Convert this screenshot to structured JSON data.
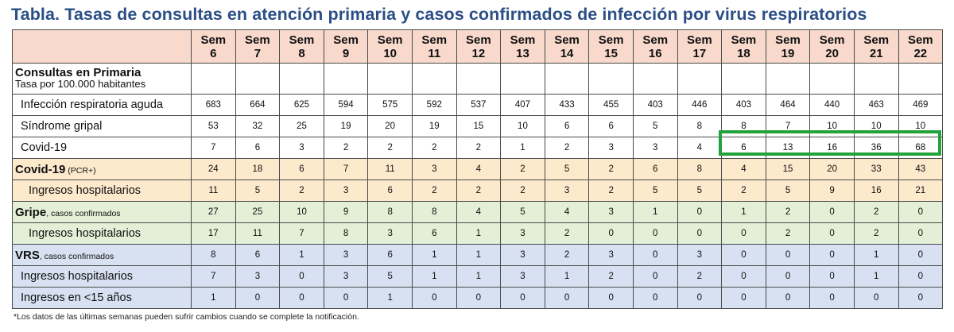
{
  "title": "Tabla. Tasas de consultas en atención primaria y casos confirmados de infección por virus respiratorios",
  "header": {
    "weeks_line1": [
      "Sem",
      "Sem",
      "Sem",
      "Sem",
      "Sem",
      "Sem",
      "Sem",
      "Sem",
      "Sem",
      "Sem",
      "Sem",
      "Sem",
      "Sem",
      "Sem",
      "Sem",
      "Sem",
      "Sem"
    ],
    "weeks_line2": [
      "6",
      "7",
      "8",
      "9",
      "10",
      "11",
      "12",
      "13",
      "14",
      "15",
      "16",
      "17",
      "18",
      "19",
      "20",
      "21",
      "22"
    ]
  },
  "sections": {
    "consultas": {
      "title": "Consultas en Primaria",
      "subtitle": "Tasa por 100.000 habitantes"
    }
  },
  "rows": [
    {
      "label": "Infección respiratoria aguda",
      "values": [
        "683",
        "664",
        "625",
        "594",
        "575",
        "592",
        "537",
        "407",
        "433",
        "455",
        "403",
        "446",
        "403",
        "464",
        "440",
        "463",
        "469"
      ]
    },
    {
      "label": "Síndrome gripal",
      "values": [
        "53",
        "32",
        "25",
        "19",
        "20",
        "19",
        "15",
        "10",
        "6",
        "6",
        "5",
        "8",
        "8",
        "7",
        "10",
        "10",
        "10"
      ]
    },
    {
      "label": "Covid-19",
      "values": [
        "7",
        "6",
        "3",
        "2",
        "2",
        "2",
        "2",
        "1",
        "2",
        "3",
        "3",
        "4",
        "6",
        "13",
        "16",
        "36",
        "68"
      ]
    },
    {
      "label_bold": "Covid-19",
      "label_small": " (PCR+)",
      "values": [
        "24",
        "18",
        "6",
        "7",
        "11",
        "3",
        "4",
        "2",
        "5",
        "2",
        "6",
        "8",
        "4",
        "15",
        "20",
        "33",
        "43"
      ]
    },
    {
      "label": "Ingresos hospitalarios",
      "values": [
        "11",
        "5",
        "2",
        "3",
        "6",
        "2",
        "2",
        "2",
        "3",
        "2",
        "5",
        "5",
        "2",
        "5",
        "9",
        "16",
        "21"
      ]
    },
    {
      "label_bold": "Gripe",
      "label_small": ", casos confirmados",
      "values": [
        "27",
        "25",
        "10",
        "9",
        "8",
        "8",
        "4",
        "5",
        "4",
        "3",
        "1",
        "0",
        "1",
        "2",
        "0",
        "2",
        "0"
      ]
    },
    {
      "label": "Ingresos hospitalarios",
      "values": [
        "17",
        "11",
        "7",
        "8",
        "3",
        "6",
        "1",
        "3",
        "2",
        "0",
        "0",
        "0",
        "0",
        "2",
        "0",
        "2",
        "0"
      ]
    },
    {
      "label_bold": "VRS",
      "label_small": ", casos confirmados",
      "values": [
        "8",
        "6",
        "1",
        "3",
        "6",
        "1",
        "1",
        "3",
        "2",
        "3",
        "0",
        "3",
        "0",
        "0",
        "0",
        "1",
        "0"
      ]
    },
    {
      "label": "Ingresos hospitalarios",
      "values": [
        "7",
        "3",
        "0",
        "3",
        "5",
        "1",
        "1",
        "3",
        "1",
        "2",
        "0",
        "2",
        "0",
        "0",
        "0",
        "1",
        "0"
      ]
    },
    {
      "label": "Ingresos en <15 años",
      "values": [
        "1",
        "0",
        "0",
        "0",
        "1",
        "0",
        "0",
        "0",
        "0",
        "0",
        "0",
        "0",
        "0",
        "0",
        "0",
        "0",
        "0"
      ]
    }
  ],
  "footnote": "*Los datos de las últimas semanas pueden sufrir cambios cuando se complete la notificación.",
  "colors": {
    "title": "#2b4f86",
    "header_bg": "#f8d9cc",
    "covid_bg": "#fde9cc",
    "gripe_bg": "#e3efd6",
    "vrs_bg": "#d7e1f1",
    "highlight_border": "#21a33a"
  }
}
